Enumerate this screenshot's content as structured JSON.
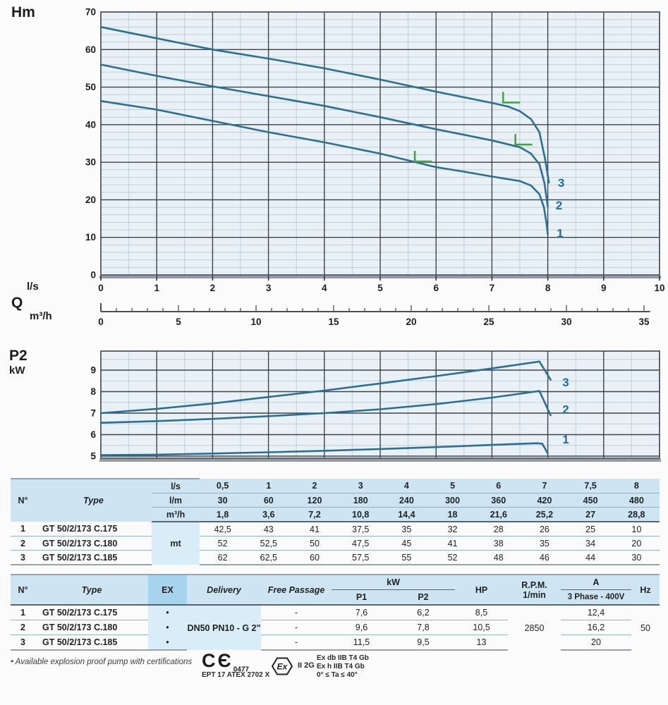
{
  "labels": {
    "hm": "Hm",
    "q": "Q",
    "ls": "l/s",
    "m3h": "m³/h",
    "p2": "P2",
    "kw": "kW"
  },
  "chart_data": [
    {
      "type": "line",
      "title": "Head vs flow (Q-H curves)",
      "ylabel": "Hm",
      "xlabel": "l/s",
      "x2label": "m³/h",
      "ylim": [
        0,
        70
      ],
      "xlim": [
        0,
        10
      ],
      "x2lim": [
        0,
        35
      ],
      "y_ticks": [
        0,
        10,
        20,
        30,
        40,
        50,
        60,
        70
      ],
      "x_ticks": [
        0,
        1,
        2,
        3,
        4,
        5,
        6,
        7,
        8,
        9,
        10
      ],
      "x2_ticks": [
        0,
        5,
        10,
        15,
        20,
        25,
        30,
        35
      ],
      "grid": "on",
      "series": [
        {
          "name": "1",
          "points": [
            [
              0,
              46.3
            ],
            [
              1,
              44
            ],
            [
              2,
              41
            ],
            [
              3,
              38
            ],
            [
              4,
              35.3
            ],
            [
              5,
              32.3
            ],
            [
              6,
              28.7
            ],
            [
              6.5,
              27.5
            ],
            [
              7,
              26.2
            ],
            [
              7.5,
              25
            ],
            [
              7.7,
              23.8
            ],
            [
              7.85,
              21.5
            ],
            [
              7.93,
              18
            ],
            [
              7.98,
              13.5
            ],
            [
              8.0,
              10.8
            ]
          ],
          "label_at": [
            8.16,
            11.2
          ]
        },
        {
          "name": "2",
          "points": [
            [
              0,
              56
            ],
            [
              1,
              53
            ],
            [
              2,
              50.2
            ],
            [
              3,
              47.6
            ],
            [
              4,
              45
            ],
            [
              5,
              42
            ],
            [
              6,
              38.8
            ],
            [
              6.5,
              37.3
            ],
            [
              7,
              35.8
            ],
            [
              7.5,
              34
            ],
            [
              7.7,
              32.3
            ],
            [
              7.85,
              29.5
            ],
            [
              7.94,
              24.5
            ],
            [
              8.0,
              18.2
            ]
          ],
          "label_at": [
            8.14,
            18.6
          ]
        },
        {
          "name": "3",
          "points": [
            [
              0,
              66
            ],
            [
              1,
              63
            ],
            [
              2,
              60
            ],
            [
              3,
              57.6
            ],
            [
              4,
              55
            ],
            [
              5,
              52
            ],
            [
              6,
              48.8
            ],
            [
              6.5,
              47.3
            ],
            [
              7,
              45.8
            ],
            [
              7.3,
              44.8
            ],
            [
              7.5,
              43.6
            ],
            [
              7.7,
              41.5
            ],
            [
              7.85,
              38
            ],
            [
              7.95,
              31
            ],
            [
              8.02,
              24.6
            ]
          ],
          "label_at": [
            8.18,
            24.6
          ]
        }
      ],
      "min_flow_markers": [
        [
          5.62,
          30.2
        ],
        [
          7.42,
          34.7
        ],
        [
          7.2,
          45.9
        ]
      ]
    },
    {
      "type": "line",
      "title": "Shaft power P2 vs flow",
      "ylabel": "P2 kW",
      "ylim": [
        4.9,
        9.88
      ],
      "xlim": [
        0,
        10
      ],
      "y_ticks": [
        5,
        6,
        7,
        8,
        9
      ],
      "grid": "on",
      "series": [
        {
          "name": "1",
          "points": [
            [
              0,
              5.05
            ],
            [
              1,
              5.07
            ],
            [
              2,
              5.12
            ],
            [
              3,
              5.18
            ],
            [
              4,
              5.25
            ],
            [
              5,
              5.33
            ],
            [
              6,
              5.42
            ],
            [
              7,
              5.52
            ],
            [
              7.5,
              5.57
            ],
            [
              7.8,
              5.6
            ],
            [
              7.9,
              5.58
            ],
            [
              8.0,
              5.12
            ]
          ],
          "label_at": [
            8.26,
            5.78
          ]
        },
        {
          "name": "2",
          "points": [
            [
              0,
              6.55
            ],
            [
              1,
              6.63
            ],
            [
              2,
              6.73
            ],
            [
              3,
              6.86
            ],
            [
              4,
              7.0
            ],
            [
              5,
              7.18
            ],
            [
              6,
              7.42
            ],
            [
              7,
              7.72
            ],
            [
              7.5,
              7.9
            ],
            [
              7.85,
              8.03
            ],
            [
              8.05,
              6.9
            ]
          ],
          "label_at": [
            8.26,
            7.18
          ]
        },
        {
          "name": "3",
          "points": [
            [
              0,
              7.0
            ],
            [
              1,
              7.2
            ],
            [
              2,
              7.45
            ],
            [
              3,
              7.75
            ],
            [
              4,
              8.05
            ],
            [
              5,
              8.38
            ],
            [
              6,
              8.72
            ],
            [
              7,
              9.08
            ],
            [
              7.5,
              9.27
            ],
            [
              7.85,
              9.4
            ],
            [
              8.05,
              8.55
            ]
          ],
          "label_at": [
            8.26,
            8.45
          ]
        }
      ],
      "min_flow_markers": []
    }
  ],
  "colors": {
    "curve": "#2b6f94",
    "curve_label": "#1b6da3",
    "marker_green": "#46a247",
    "grid_major": "#3d444b",
    "grid_minor": "#9db4c4",
    "plot_bg": "#e9f1f7",
    "axis_heavy": "#969ca3"
  },
  "tables": {
    "performance": {
      "col_n": "N°",
      "col_type": "Type",
      "unit_label": "mt",
      "unit_rows": [
        {
          "unit": "l/s",
          "values": [
            "0,5",
            "1",
            "2",
            "3",
            "4",
            "5",
            "6",
            "7",
            "7,5",
            "8"
          ]
        },
        {
          "unit": "l/m",
          "values": [
            "30",
            "60",
            "120",
            "180",
            "240",
            "300",
            "360",
            "420",
            "450",
            "480"
          ]
        },
        {
          "unit": "m³/h",
          "values": [
            "1,8",
            "3,6",
            "7,2",
            "10,8",
            "14,4",
            "18",
            "21,6",
            "25,2",
            "27",
            "28,8"
          ]
        }
      ],
      "rows": [
        {
          "n": "1",
          "type": "GT 50/2/173 C.175",
          "values": [
            "42,5",
            "43",
            "41",
            "37,5",
            "35",
            "32",
            "28",
            "26",
            "25",
            "10"
          ]
        },
        {
          "n": "2",
          "type": "GT 50/2/173 C.180",
          "values": [
            "52",
            "52,5",
            "50",
            "47,5",
            "45",
            "41",
            "38",
            "35",
            "34",
            "20"
          ]
        },
        {
          "n": "3",
          "type": "GT 50/2/173 C.185",
          "values": [
            "62",
            "62,5",
            "60",
            "57,5",
            "55",
            "52",
            "48",
            "46",
            "44",
            "30"
          ]
        }
      ]
    },
    "ratings": {
      "headers": {
        "n": "N°",
        "type": "Type",
        "ex": "EX",
        "delivery": "Delivery",
        "free_passage": "Free Passage",
        "kw": "kW",
        "p1": "P1",
        "p2": "P2",
        "hp": "HP",
        "rpm": "R.P.M.",
        "rpm2": "1/min",
        "a": "A",
        "a2": "3 Phase - 400V",
        "hz": "Hz"
      },
      "delivery_value": "DN50 PN10 - G 2\"",
      "rpm_value": "2850",
      "hz_value": "50",
      "rows": [
        {
          "n": "1",
          "type": "GT 50/2/173 C.175",
          "ex": "•",
          "free_passage": "-",
          "p1": "7,6",
          "p2": "6,2",
          "hp": "8,5",
          "a": "12,4"
        },
        {
          "n": "2",
          "type": "GT 50/2/173 C.180",
          "ex": "•",
          "free_passage": "-",
          "p1": "9,6",
          "p2": "7,8",
          "hp": "10,5",
          "a": "16,2"
        },
        {
          "n": "3",
          "type": "GT 50/2/173 C.185",
          "ex": "•",
          "free_passage": "-",
          "p1": "11,5",
          "p2": "9,5",
          "hp": "13",
          "a": "20"
        }
      ]
    }
  },
  "footer": {
    "note": "• Available explosion proof pump with certifications",
    "ce_glyph": "CЄ",
    "ce_number": "0477",
    "atex_line": "EPT 17 ATEX 2702 X",
    "ex_glyph": "Ex",
    "ex_category": "II 2G",
    "ex_lines": [
      "Ex db IIB T4 Gb",
      "Ex h IIB T4 Gb",
      "0° ≤ Ta ≤ 40°"
    ]
  }
}
